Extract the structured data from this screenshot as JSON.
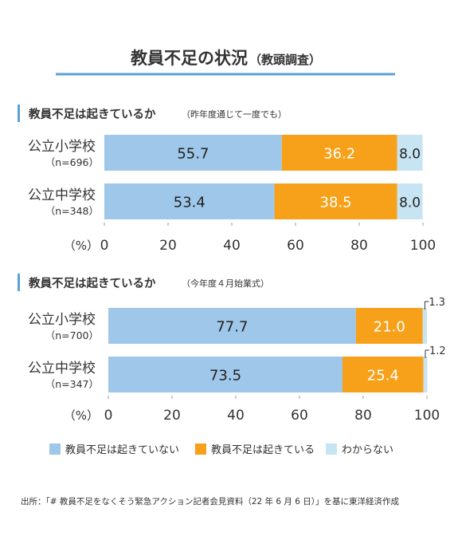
{
  "title": "教員不足の状況",
  "title_sub": "（教頭調査）",
  "source": "出所：「# 教員不足をなくそう緊急アクション記者会見資料（22 年 6 月 6 日）」を基に東洋経済作成",
  "colors": {
    "not_short": "#9fc7ea",
    "short": "#f7a11a",
    "unknown": "#c7e4f2",
    "accent": "#5aa1d6",
    "text": "#333333"
  },
  "legend": [
    {
      "label": "教員不足は起きていない",
      "color": "#9fc7ea"
    },
    {
      "label": "教員不足は起きている",
      "color": "#f7a11a"
    },
    {
      "label": "わからない",
      "color": "#c7e4f2"
    }
  ],
  "chart_data": [
    {
      "type": "bar",
      "orientation": "horizontal",
      "stacked": true,
      "title": "教員不足は起きているか",
      "title_note": "（昨年度通じて一度でも）",
      "categories": [
        {
          "name": "公立小学校",
          "n": "（n=696）"
        },
        {
          "name": "公立中学校",
          "n": "（n=348）"
        }
      ],
      "series": [
        {
          "name": "教員不足は起きていない",
          "values": [
            55.7,
            53.4
          ],
          "labels": [
            "55.7",
            "53.4"
          ]
        },
        {
          "name": "教員不足は起きている",
          "values": [
            36.2,
            38.5
          ],
          "labels": [
            "36.2",
            "38.5"
          ]
        },
        {
          "name": "わからない",
          "values": [
            8.0,
            8.0
          ],
          "labels": [
            "8.0",
            "8.0"
          ]
        }
      ],
      "xlim": [
        0,
        100
      ],
      "xticks": [
        "0",
        "20",
        "40",
        "60",
        "80",
        "100"
      ],
      "unit_label": "（%）"
    },
    {
      "type": "bar",
      "orientation": "horizontal",
      "stacked": true,
      "title": "教員不足は起きているか",
      "title_note": "（今年度４月始業式）",
      "categories": [
        {
          "name": "公立小学校",
          "n": "（n=700）"
        },
        {
          "name": "公立中学校",
          "n": "（n=347）"
        }
      ],
      "series": [
        {
          "name": "教員不足は起きていない",
          "values": [
            77.7,
            73.5
          ],
          "labels": [
            "77.7",
            "73.5"
          ]
        },
        {
          "name": "教員不足は起きている",
          "values": [
            21.0,
            25.4
          ],
          "labels": [
            "21.0",
            "25.4"
          ]
        },
        {
          "name": "わからない",
          "values": [
            1.3,
            1.2
          ],
          "labels": [
            "1.3",
            "1.2"
          ]
        }
      ],
      "xlim": [
        0,
        100
      ],
      "xticks": [
        "0",
        "20",
        "40",
        "60",
        "80",
        "100"
      ],
      "unit_label": "（%）"
    }
  ]
}
